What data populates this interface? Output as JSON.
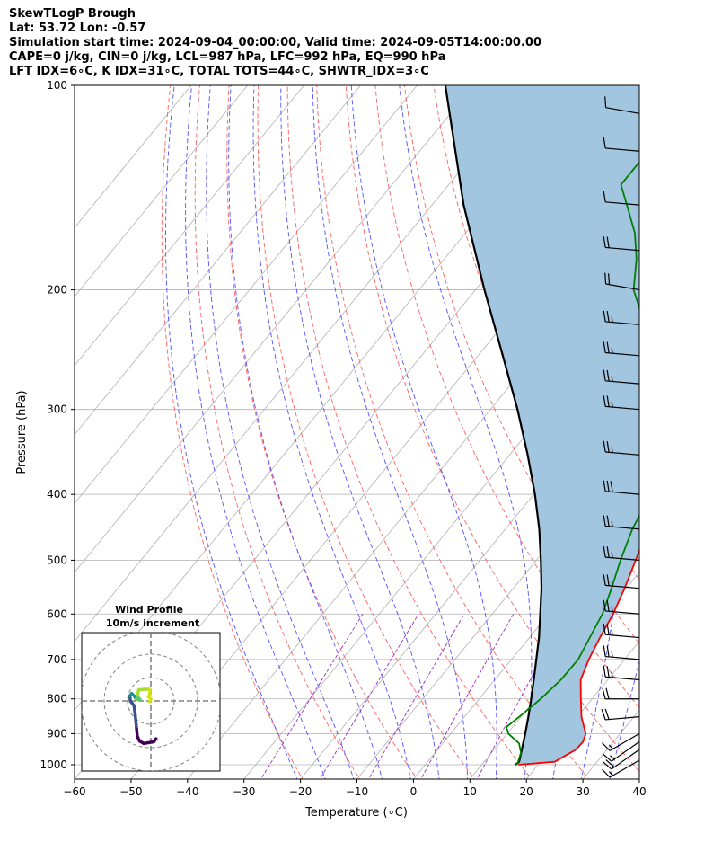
{
  "header": {
    "lines": [
      "SkewTLogP Brough",
      "Lat: 53.72   Lon: -0.57",
      "Simulation start time: 2024-09-04_00:00:00, Valid time: 2024-09-05T14:00:00.00",
      "CAPE=0 j/kg, CIN=0 j/kg, LCL=987 hPa, LFC=992 hPa, EQ=990 hPa",
      "LFT IDX=6∘C, K IDX=31∘C, TOTAL TOTS=44∘C, SHWTR_IDX=3∘C"
    ]
  },
  "colors": {
    "temperature": "#ff0000",
    "dewpoint": "#008000",
    "parcel": "#000000",
    "shade": "#a3c6e0",
    "dry_adiabat": "#ff6060",
    "moist_adiabat": "#5050ff",
    "mixing_ratio": "#9a30c0",
    "isotherm": "#b0b0b0"
  },
  "chart_data": {
    "type": "skewt",
    "xlabel": "Temperature (∘C)",
    "ylabel": "Pressure (hPa)",
    "xlim": [
      -60,
      40
    ],
    "ylim": [
      1050,
      100
    ],
    "y_scale": "log",
    "grid": true,
    "x_ticks": [
      -60,
      -50,
      -40,
      -30,
      -20,
      -10,
      0,
      10,
      20,
      30,
      40
    ],
    "y_ticks": [
      100,
      200,
      300,
      400,
      500,
      600,
      700,
      800,
      900,
      1000
    ],
    "temperature": [
      [
        1000,
        16.5
      ],
      [
        990,
        22.5
      ],
      [
        950,
        24.5
      ],
      [
        925,
        24.6
      ],
      [
        900,
        23.9
      ],
      [
        850,
        20.7
      ],
      [
        800,
        18.0
      ],
      [
        750,
        15.2
      ],
      [
        700,
        13.7
      ],
      [
        650,
        12.5
      ],
      [
        600,
        11.4
      ],
      [
        550,
        9.7
      ],
      [
        500,
        7.6
      ],
      [
        450,
        5.2
      ],
      [
        400,
        2.7
      ],
      [
        350,
        -2.0
      ],
      [
        300,
        -7.6
      ],
      [
        250,
        -16.3
      ],
      [
        200,
        -28.8
      ],
      [
        180,
        -23.2
      ],
      [
        160,
        -22.6
      ],
      [
        150,
        -23.3
      ],
      [
        130,
        -20.5
      ],
      [
        100,
        -18.3
      ]
    ],
    "dewpoint": [
      [
        1000,
        16.2
      ],
      [
        990,
        16.0
      ],
      [
        960,
        15.2
      ],
      [
        930,
        13.5
      ],
      [
        900,
        10.2
      ],
      [
        880,
        8.9
      ],
      [
        850,
        9.7
      ],
      [
        800,
        10.9
      ],
      [
        750,
        11.7
      ],
      [
        700,
        11.8
      ],
      [
        650,
        10.7
      ],
      [
        600,
        9.5
      ],
      [
        550,
        7.4
      ],
      [
        500,
        4.9
      ],
      [
        450,
        2.5
      ],
      [
        400,
        0.7
      ],
      [
        350,
        -3.0
      ],
      [
        300,
        -9.2
      ],
      [
        250,
        -19.6
      ],
      [
        220,
        -26.3
      ],
      [
        200,
        -32.0
      ],
      [
        180,
        -36.0
      ],
      [
        165,
        -40.0
      ],
      [
        150,
        -45.5
      ],
      [
        140,
        -49.5
      ],
      [
        130,
        -49.5
      ],
      [
        115,
        -44.0
      ],
      [
        100,
        -39.8
      ]
    ],
    "parcel": [
      [
        1000,
        16.0
      ],
      [
        990,
        16.2
      ],
      [
        950,
        14.9
      ],
      [
        900,
        13.2
      ],
      [
        850,
        11.3
      ],
      [
        800,
        9.2
      ],
      [
        750,
        6.9
      ],
      [
        700,
        4.4
      ],
      [
        650,
        1.7
      ],
      [
        600,
        -1.5
      ],
      [
        550,
        -5.0
      ],
      [
        500,
        -9.2
      ],
      [
        450,
        -14.0
      ],
      [
        400,
        -19.8
      ],
      [
        350,
        -26.8
      ],
      [
        300,
        -35.2
      ],
      [
        250,
        -45.6
      ],
      [
        200,
        -58.4
      ],
      [
        150,
        -74.4
      ],
      [
        100,
        -95.0
      ]
    ],
    "wind_barbs": [
      {
        "p": 985,
        "dir": 240,
        "speed": 15
      },
      {
        "p": 950,
        "dir": 235,
        "speed": 20
      },
      {
        "p": 925,
        "dir": 235,
        "speed": 15
      },
      {
        "p": 900,
        "dir": 240,
        "speed": 15
      },
      {
        "p": 850,
        "dir": 265,
        "speed": 20
      },
      {
        "p": 800,
        "dir": 270,
        "speed": 20
      },
      {
        "p": 750,
        "dir": 275,
        "speed": 25
      },
      {
        "p": 700,
        "dir": 275,
        "speed": 25
      },
      {
        "p": 650,
        "dir": 275,
        "speed": 25
      },
      {
        "p": 600,
        "dir": 275,
        "speed": 25
      },
      {
        "p": 550,
        "dir": 275,
        "speed": 25
      },
      {
        "p": 500,
        "dir": 275,
        "speed": 25
      },
      {
        "p": 450,
        "dir": 275,
        "speed": 25
      },
      {
        "p": 400,
        "dir": 275,
        "speed": 30
      },
      {
        "p": 350,
        "dir": 275,
        "speed": 25
      },
      {
        "p": 300,
        "dir": 275,
        "speed": 25
      },
      {
        "p": 275,
        "dir": 275,
        "speed": 25
      },
      {
        "p": 250,
        "dir": 275,
        "speed": 25
      },
      {
        "p": 225,
        "dir": 275,
        "speed": 25
      },
      {
        "p": 200,
        "dir": 280,
        "speed": 20
      },
      {
        "p": 175,
        "dir": 275,
        "speed": 20
      },
      {
        "p": 150,
        "dir": 275,
        "speed": 10
      },
      {
        "p": 125,
        "dir": 275,
        "speed": 10
      },
      {
        "p": 110,
        "dir": 280,
        "speed": 10
      }
    ],
    "hodograph": {
      "title": "Wind Profile",
      "subtitle": "10m/s increment",
      "rings": [
        10,
        20,
        30
      ],
      "points": [
        [
          2.2,
          -16.2
        ],
        [
          1.2,
          -17.5
        ],
        [
          -3.0,
          -18.2
        ],
        [
          -4.8,
          -17.2
        ],
        [
          -5.8,
          -15.2
        ],
        [
          -6.2,
          -11.0
        ],
        [
          -6.7,
          -6.0
        ],
        [
          -7.2,
          -2.0
        ],
        [
          -8.8,
          0.0
        ],
        [
          -9.0,
          2.2
        ],
        [
          -8.2,
          3.2
        ],
        [
          -7.0,
          2.0
        ],
        [
          -6.4,
          1.0
        ],
        [
          -5.6,
          1.4
        ],
        [
          -6.2,
          0.8
        ],
        [
          -4.5,
          0.4
        ],
        [
          -5.6,
          1.6
        ],
        [
          -5.6,
          2.5
        ],
        [
          -5.3,
          4.5
        ],
        [
          -5.0,
          4.8
        ],
        [
          -2.5,
          5.0
        ],
        [
          -0.5,
          5.0
        ],
        [
          -0.5,
          2.5
        ],
        [
          -1.0,
          1.8
        ],
        [
          0.0,
          0.8
        ],
        [
          -0.5,
          -0.3
        ]
      ],
      "colormap": [
        "#440154",
        "#3b528b",
        "#21918c",
        "#5ec962",
        "#a8db34",
        "#d4e21a"
      ]
    }
  }
}
